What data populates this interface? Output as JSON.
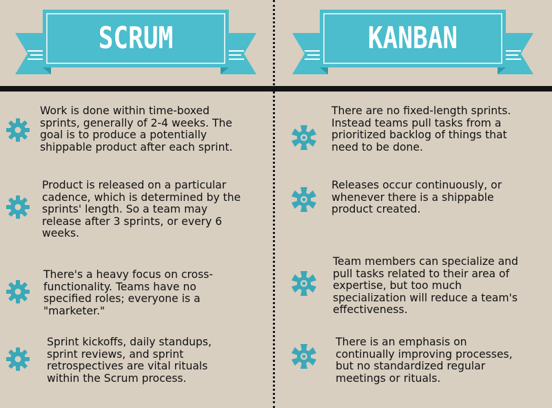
{
  "colors": {
    "background": "#d8cfc1",
    "banner": "#4bbdcc",
    "banner_dark": "#2f9aaa",
    "gear": "#3aa8b8",
    "rule": "#141414"
  },
  "scrum": {
    "title": "SCRUM",
    "items": [
      {
        "icon": "gear-icon",
        "lines": [
          "Work is done within time-boxed",
          "sprints, generally of 2-4 weeks. The",
          "goal is to produce a potentially",
          "shippable product after each sprint."
        ]
      },
      {
        "icon": "gear-icon",
        "lines": [
          "Product is released on a particular",
          "cadence, which is determined by the",
          "sprints' length. So a team may",
          "release after 3 sprints, or every 6",
          "weeks."
        ]
      },
      {
        "icon": "gear-icon",
        "lines": [
          "There's a heavy focus on cross-",
          "functionality. Teams have no",
          "specified roles; everyone is a",
          "\"marketer.\""
        ]
      },
      {
        "icon": "gear-icon",
        "lines": [
          "Sprint kickoffs, daily standups,",
          "sprint reviews, and sprint",
          "retrospectives are vital rituals",
          "within the Scrum process."
        ]
      }
    ]
  },
  "kanban": {
    "title": "KANBAN",
    "items": [
      {
        "icon": "gear-icon",
        "lines": [
          "There are no fixed-length sprints.",
          "Instead teams pull tasks from a",
          "prioritized backlog of things that",
          "need to be done."
        ]
      },
      {
        "icon": "gear-icon",
        "lines": [
          "Releases occur continuously, or",
          "whenever there is a shippable",
          "product created."
        ]
      },
      {
        "icon": "gear-icon",
        "lines": [
          "Team members can specialize and",
          "pull tasks related to their area of",
          "expertise, but too much",
          "specialization will reduce a team's",
          "effectiveness."
        ]
      },
      {
        "icon": "gear-icon",
        "lines": [
          "There is an emphasis on",
          "continually improving processes,",
          "but no standardized regular",
          "meetings or rituals."
        ]
      }
    ]
  }
}
